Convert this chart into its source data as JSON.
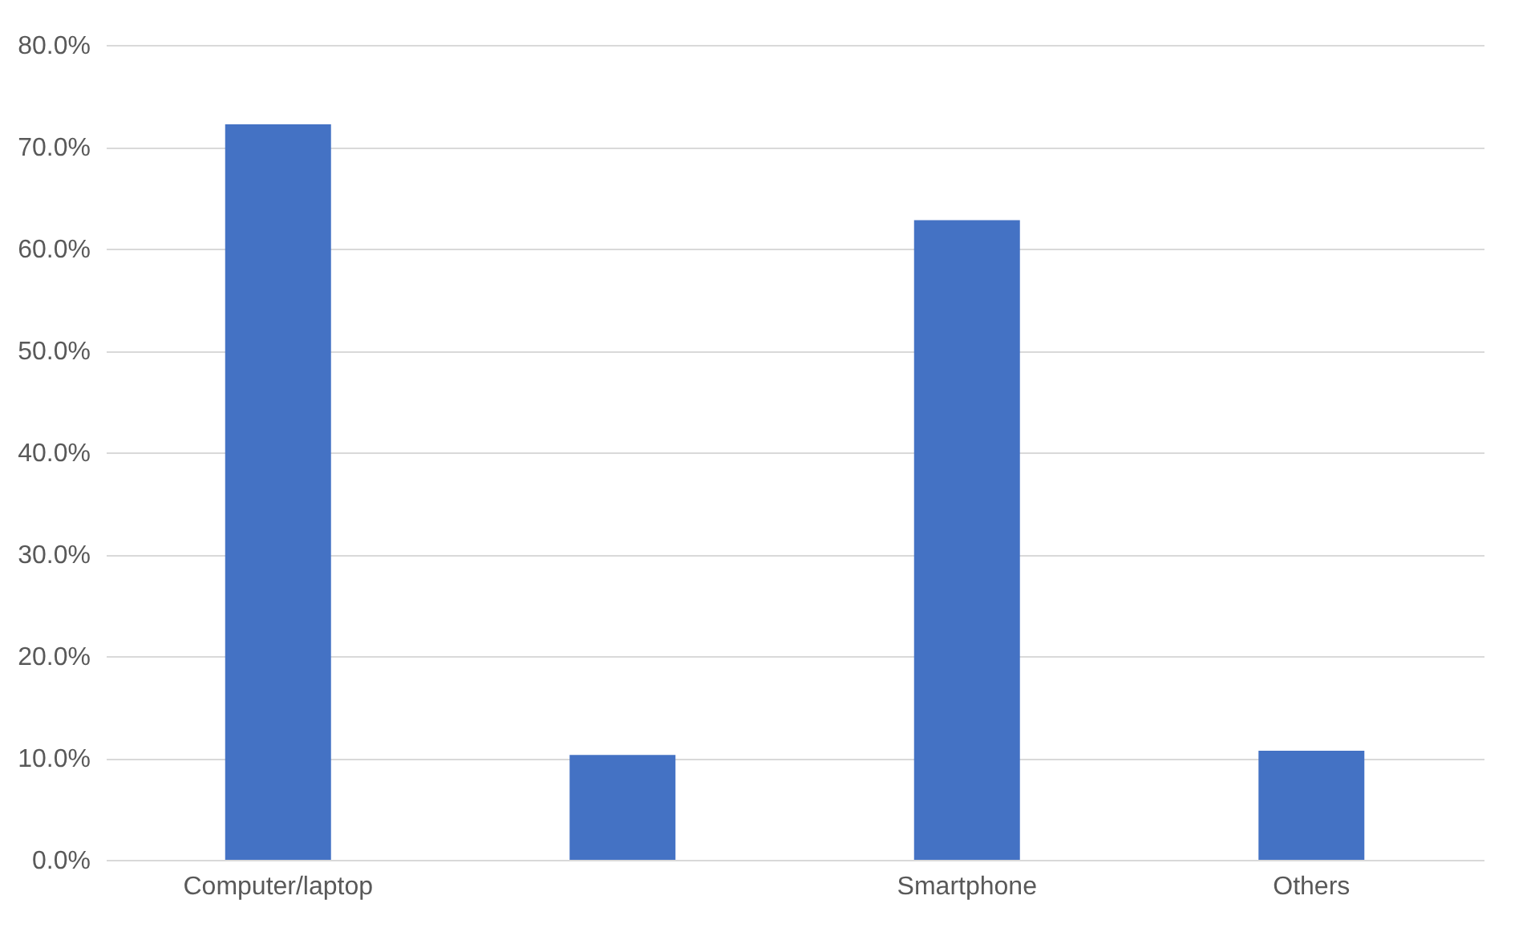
{
  "chart_data": {
    "type": "bar",
    "categories": [
      "Computer/laptop",
      null,
      "Smartphone",
      "Others"
    ],
    "values": [
      72.2,
      10.3,
      62.8,
      10.7
    ],
    "color": "#4472c4",
    "ylim": [
      0,
      80
    ],
    "yticks": [
      {
        "value": 0,
        "label": "0.0%"
      },
      {
        "value": 10,
        "label": "10.0%"
      },
      {
        "value": 20,
        "label": "20.0%"
      },
      {
        "value": 30,
        "label": "30.0%"
      },
      {
        "value": 40,
        "label": "40.0%"
      },
      {
        "value": 50,
        "label": "50.0%"
      },
      {
        "value": 60,
        "label": "60.0%"
      },
      {
        "value": 70,
        "label": "70.0%"
      },
      {
        "value": 80,
        "label": "80.0%"
      }
    ],
    "grid": "y"
  }
}
